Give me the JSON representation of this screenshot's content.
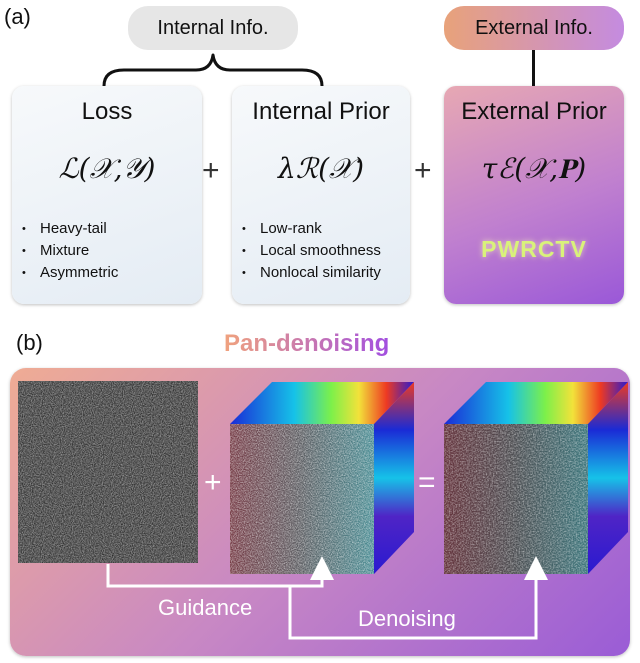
{
  "panel_a": {
    "label": "(a)",
    "internal_info": "Internal Info.",
    "external_info": "External Info.",
    "loss": {
      "title": "Loss",
      "formula": "ℒ(𝒳,𝒴)",
      "items": [
        "Heavy-tail",
        "Mixture",
        "Asymmetric"
      ]
    },
    "internal_prior": {
      "title": "Internal Prior",
      "formula": "λℛ(𝒳)",
      "items": [
        "Low-rank",
        "Local smoothness",
        "Nonlocal similarity"
      ]
    },
    "external_prior": {
      "title": "External Prior",
      "formula": "τℰ(𝒳,𝐏)",
      "method": "PWRCTV"
    },
    "plus": "+"
  },
  "panel_b": {
    "label": "(b)",
    "title": "Pan-denoising",
    "plus": "+",
    "equals": "=",
    "guidance_label": "Guidance",
    "denoising_label": "Denoising"
  },
  "colors": {
    "loss_bg": "#eef3f8",
    "internal_info_pill": "#e6e6e6",
    "external_info_pill_start": "#e8a27a",
    "external_info_pill_end": "#c48be0",
    "external_box_start": "#e3a3b6",
    "external_box_end": "#9a58d8",
    "panel_b_start": "#f0a892",
    "panel_b_end": "#9a5cd6"
  }
}
